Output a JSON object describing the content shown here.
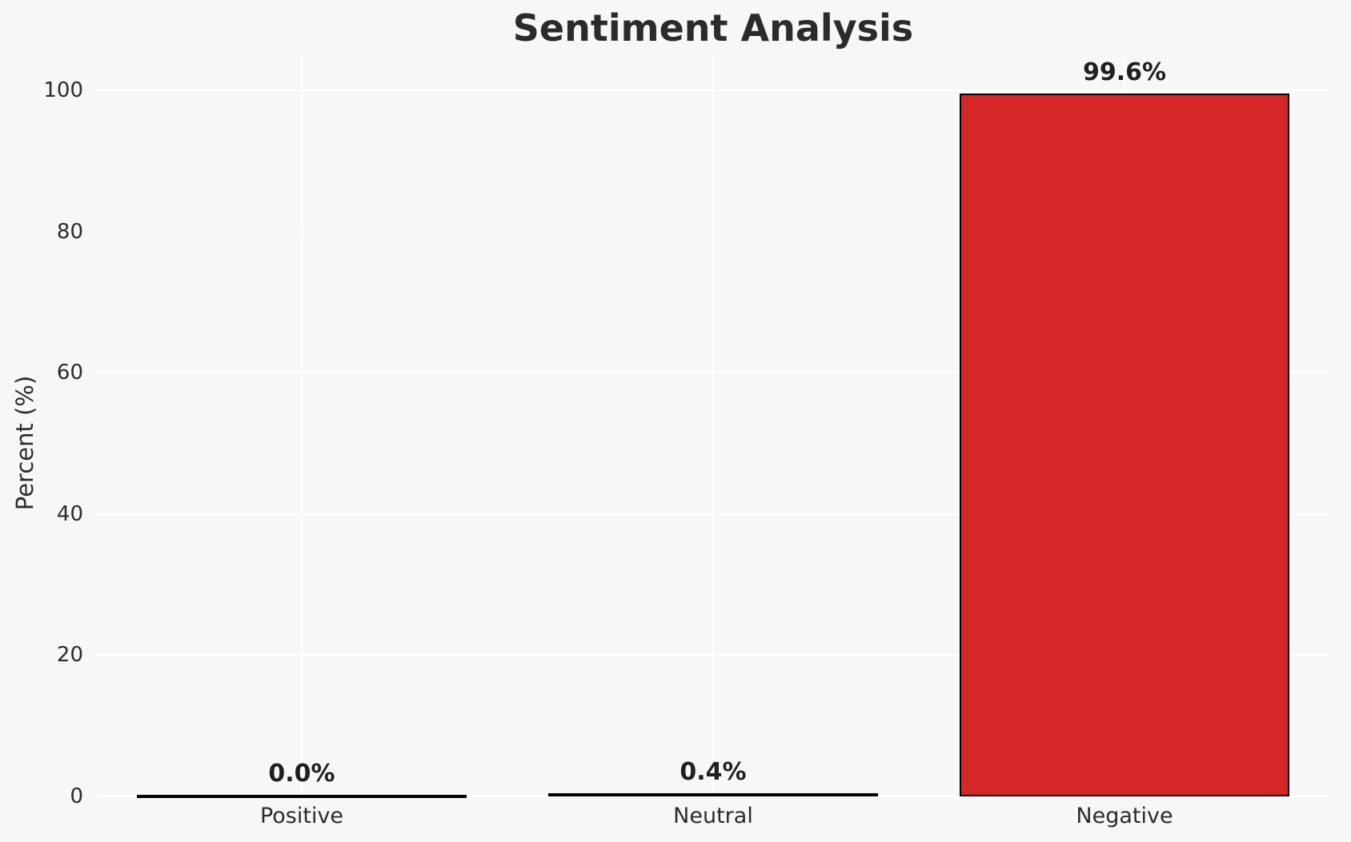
{
  "chart_data": {
    "type": "bar",
    "title": "Sentiment Analysis",
    "xlabel": "",
    "ylabel": "Percent (%)",
    "categories": [
      "Positive",
      "Neutral",
      "Negative"
    ],
    "values": [
      0.0,
      0.4,
      99.6
    ],
    "bar_labels": [
      "0.0%",
      "0.4%",
      "99.6%"
    ],
    "bar_colors": [
      "none",
      "#1a1a1a",
      "#d62728"
    ],
    "bar_edge_color": "#000000",
    "yticks": [
      0,
      20,
      40,
      60,
      80,
      100
    ],
    "ylim": [
      0,
      105
    ],
    "grid": true,
    "grid_color": "#ffffff",
    "background_color": "#f7f7f7",
    "text_color": "#2b2b2b",
    "legend_position": "none"
  }
}
